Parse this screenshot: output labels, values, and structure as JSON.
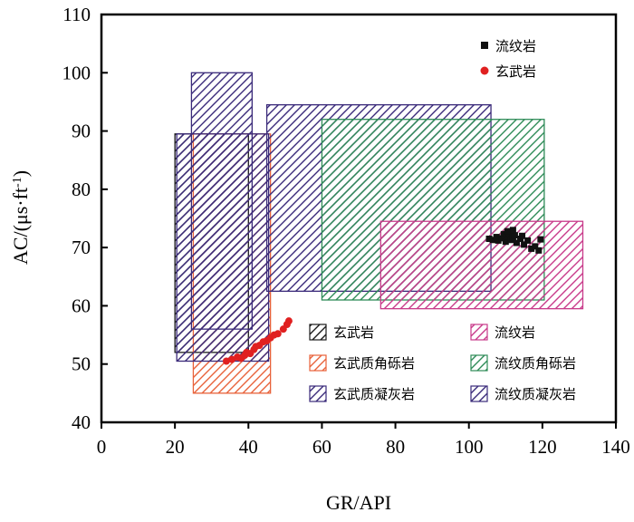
{
  "chart_data": {
    "type": "scatter",
    "xlabel": "GR/API",
    "ylabel_main": "AC/(μs·ft",
    "ylabel_sup": "-1",
    "ylabel_end": ")",
    "xlim": [
      0,
      140
    ],
    "ylim": [
      40,
      110
    ],
    "xticks": [
      0,
      20,
      40,
      60,
      80,
      100,
      120,
      140
    ],
    "yticks": [
      40,
      50,
      60,
      70,
      80,
      90,
      100,
      110
    ],
    "legend_top_position": "top-right",
    "legend_bottom_position": "bottom-right",
    "regions": [
      {
        "name": "玄武岩",
        "color": "#1a1a1a",
        "x": [
          20,
          40
        ],
        "y": [
          52,
          89.5
        ]
      },
      {
        "name": "玄武质角砾岩",
        "color": "#e8623a",
        "x": [
          25,
          46
        ],
        "y": [
          45,
          89.5
        ]
      },
      {
        "name": "玄武质凝灰岩",
        "color": "#3a2a7a",
        "x": [
          24.5,
          41
        ],
        "y": [
          56,
          100
        ]
      },
      {
        "name": "玄武质凝灰岩",
        "color": "#3a2a7a",
        "x": [
          20.5,
          45.5
        ],
        "y": [
          50.5,
          89.5
        ]
      },
      {
        "name": "流纹质凝灰岩",
        "color": "#3a2a7a",
        "x": [
          45,
          106
        ],
        "y": [
          62.5,
          94.5
        ]
      },
      {
        "name": "流纹质角砾岩",
        "color": "#2e8b57",
        "x": [
          60,
          120.5
        ],
        "y": [
          61,
          92
        ]
      },
      {
        "name": "流纹岩",
        "color": "#c83a8a",
        "x": [
          76,
          131
        ],
        "y": [
          59.5,
          74.5
        ]
      }
    ],
    "region_legend": [
      {
        "name": "玄武岩",
        "color": "#1a1a1a"
      },
      {
        "name": "流纹岩",
        "color": "#c83a8a"
      },
      {
        "name": "玄武质角砾岩",
        "color": "#e8623a"
      },
      {
        "name": "流纹质角砾岩",
        "color": "#2e8b57"
      },
      {
        "name": "玄武质凝灰岩",
        "color": "#3a2a7a"
      },
      {
        "name": "流纹质凝灰岩",
        "color": "#3a2a7a"
      }
    ],
    "series": [
      {
        "name": "流纹岩",
        "marker": "square",
        "color": "#111111",
        "x": [
          105.5,
          106.5,
          107.5,
          108,
          109,
          109.5,
          110,
          110.5,
          111,
          111.5,
          112,
          112.5,
          113,
          114,
          114.5,
          115,
          116,
          117,
          118,
          119,
          119.5,
          112,
          110.5
        ],
        "y": [
          71.5,
          71.3,
          71.8,
          71.2,
          71.6,
          72.3,
          71.0,
          71.9,
          72.4,
          71.3,
          71.8,
          72.1,
          70.8,
          71.5,
          72.0,
          70.5,
          71.2,
          69.8,
          70.2,
          69.5,
          71.4,
          73.0,
          72.8
        ]
      },
      {
        "name": "玄武岩",
        "marker": "circle",
        "color": "#e02020",
        "x": [
          34,
          35.5,
          37,
          38,
          39,
          39.5,
          40.5,
          41.5,
          42,
          43,
          44,
          45,
          46,
          47,
          48,
          49.5,
          50.5,
          51
        ],
        "y": [
          50.5,
          50.8,
          51.2,
          51.0,
          51.5,
          52.0,
          51.8,
          52.5,
          53.0,
          53.2,
          53.8,
          54.0,
          54.5,
          55.0,
          55.2,
          56.0,
          56.8,
          57.4
        ]
      }
    ]
  }
}
